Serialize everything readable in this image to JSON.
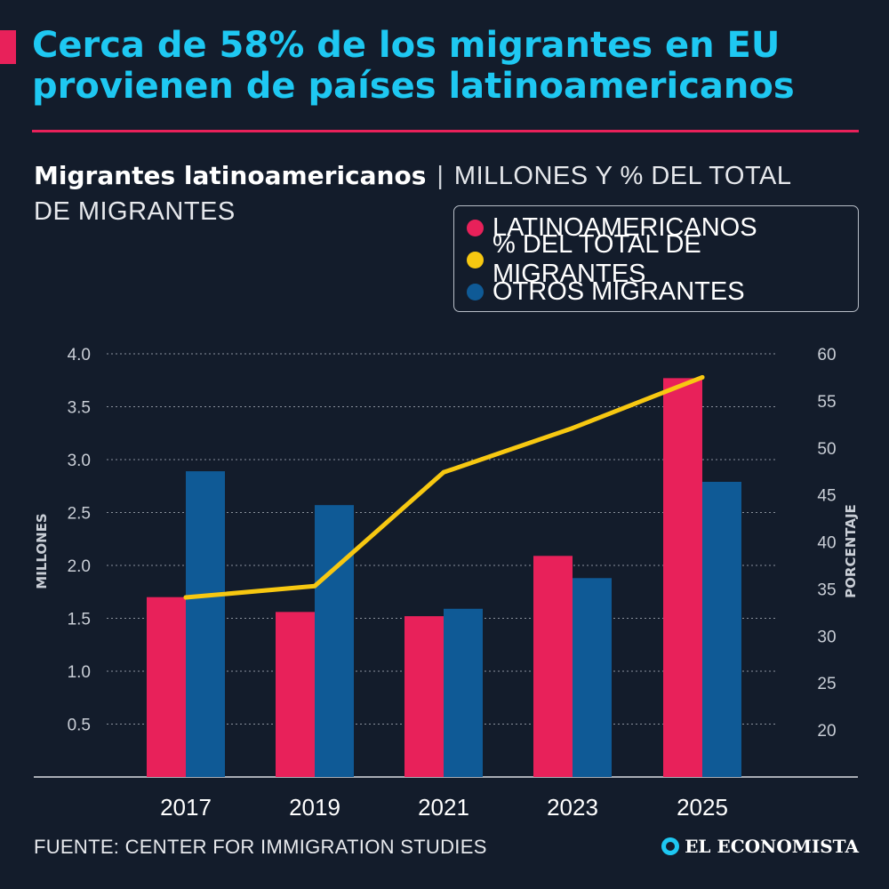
{
  "header": {
    "title_line1": "Cerca de 58% de los migrantes en EU",
    "title_line2": "provienen de países latinoamericanos",
    "accent_color": "#e8215a",
    "title_color": "#1ec8f2"
  },
  "subtitle": {
    "bold": "Migrantes latinoamericanos",
    "separator": "|",
    "units": "MILLONES Y % DEL TOTAL DE MIGRANTES"
  },
  "legend": [
    {
      "label": "LATINOAMERICANOS",
      "color": "#e8215a"
    },
    {
      "label": "% DEL TOTAL DE MIGRANTES",
      "color": "#f7c811"
    },
    {
      "label": "OTROS MIGRANTES",
      "color": "#0f5a96"
    }
  ],
  "chart_data": {
    "type": "bar",
    "categories": [
      "2017",
      "2019",
      "2021",
      "2023",
      "2025"
    ],
    "series": [
      {
        "name": "LATINOAMERICANOS",
        "type": "bar",
        "axis": "left",
        "color": "#e8215a",
        "values": [
          1.7,
          1.56,
          1.52,
          2.09,
          3.77
        ]
      },
      {
        "name": "OTROS MIGRANTES",
        "type": "bar",
        "axis": "left",
        "color": "#0f5a96",
        "values": [
          2.89,
          2.57,
          1.59,
          1.88,
          2.79
        ]
      },
      {
        "name": "% DEL TOTAL DE MIGRANTES",
        "type": "line",
        "axis": "right",
        "color": "#f7c811",
        "values": [
          34.1,
          35.3,
          47.4,
          52.1,
          57.5
        ]
      }
    ],
    "ylabel": "MILLONES",
    "ylabel_right": "PORCENTAJE",
    "ylim": [
      0,
      4.0
    ],
    "ylim_right": [
      15,
      60
    ],
    "yticks": [
      "4.0",
      "3.5",
      "3.0",
      "2.5",
      "2.0",
      "1.5",
      "1.0",
      "0.5"
    ],
    "yticks_right": [
      "60",
      "55",
      "50",
      "45",
      "40",
      "35",
      "30",
      "25",
      "20"
    ],
    "grid": true
  },
  "footer": {
    "source": "FUENTE: CENTER FOR IMMIGRATION STUDIES",
    "logo": "EL ECONOMISTA"
  }
}
